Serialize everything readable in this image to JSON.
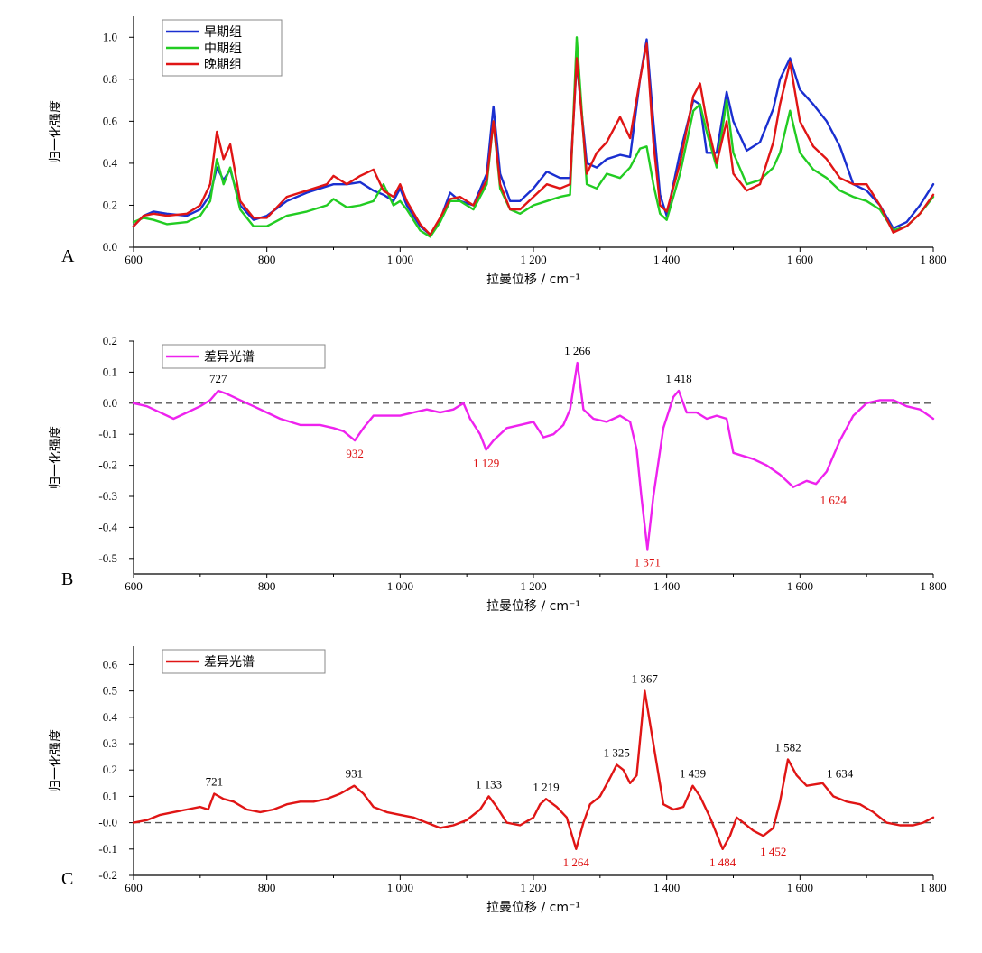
{
  "chart_data": [
    {
      "panel_label": "A",
      "type": "line",
      "xlabel": "拉曼位移 / cm⁻¹",
      "ylabel": "归一化强度",
      "xlim": [
        600,
        1800
      ],
      "ylim": [
        0,
        1.1
      ],
      "xticks": [
        "600",
        "800",
        "1 000",
        "1 200",
        "1 400",
        "1 600",
        "1 800"
      ],
      "yticks": [
        "0.0",
        "0.2",
        "0.4",
        "0.6",
        "0.8",
        "1.0"
      ],
      "yticks_values": [
        0,
        0.2,
        0.4,
        0.6,
        0.8,
        1.0
      ],
      "legend_position": "top-left",
      "series": [
        {
          "name": "早期组",
          "color": "#1a2fd0",
          "x": [
            600,
            615,
            630,
            650,
            680,
            700,
            715,
            725,
            735,
            745,
            760,
            780,
            800,
            830,
            860,
            890,
            900,
            920,
            940,
            960,
            975,
            990,
            1000,
            1010,
            1030,
            1045,
            1060,
            1075,
            1090,
            1110,
            1130,
            1140,
            1150,
            1165,
            1180,
            1200,
            1220,
            1240,
            1255,
            1265,
            1280,
            1295,
            1310,
            1330,
            1345,
            1360,
            1370,
            1380,
            1390,
            1400,
            1420,
            1440,
            1450,
            1460,
            1475,
            1490,
            1500,
            1520,
            1540,
            1560,
            1570,
            1585,
            1600,
            1620,
            1640,
            1660,
            1680,
            1700,
            1720,
            1740,
            1760,
            1780,
            1800
          ],
          "y": [
            0.1,
            0.15,
            0.17,
            0.16,
            0.15,
            0.18,
            0.25,
            0.38,
            0.32,
            0.37,
            0.2,
            0.13,
            0.15,
            0.22,
            0.26,
            0.29,
            0.3,
            0.3,
            0.31,
            0.27,
            0.25,
            0.22,
            0.28,
            0.2,
            0.1,
            0.06,
            0.13,
            0.26,
            0.22,
            0.2,
            0.35,
            0.67,
            0.35,
            0.22,
            0.22,
            0.28,
            0.36,
            0.33,
            0.33,
            0.88,
            0.4,
            0.38,
            0.42,
            0.44,
            0.43,
            0.8,
            0.99,
            0.6,
            0.25,
            0.15,
            0.45,
            0.7,
            0.68,
            0.45,
            0.45,
            0.74,
            0.6,
            0.46,
            0.5,
            0.66,
            0.8,
            0.9,
            0.75,
            0.68,
            0.6,
            0.48,
            0.3,
            0.27,
            0.2,
            0.09,
            0.12,
            0.2,
            0.3
          ]
        },
        {
          "name": "中期组",
          "color": "#22cc22",
          "x": [
            600,
            615,
            630,
            650,
            680,
            700,
            715,
            725,
            735,
            745,
            760,
            780,
            800,
            830,
            860,
            890,
            900,
            920,
            940,
            960,
            975,
            990,
            1000,
            1010,
            1030,
            1045,
            1060,
            1075,
            1090,
            1110,
            1130,
            1140,
            1150,
            1165,
            1180,
            1200,
            1220,
            1240,
            1255,
            1265,
            1280,
            1295,
            1310,
            1330,
            1345,
            1360,
            1370,
            1380,
            1390,
            1400,
            1420,
            1440,
            1450,
            1460,
            1475,
            1490,
            1500,
            1520,
            1540,
            1560,
            1570,
            1585,
            1600,
            1620,
            1640,
            1660,
            1680,
            1700,
            1720,
            1740,
            1760,
            1780,
            1800
          ],
          "y": [
            0.12,
            0.14,
            0.13,
            0.11,
            0.12,
            0.15,
            0.22,
            0.42,
            0.3,
            0.38,
            0.18,
            0.1,
            0.1,
            0.15,
            0.17,
            0.2,
            0.23,
            0.19,
            0.2,
            0.22,
            0.3,
            0.2,
            0.22,
            0.18,
            0.08,
            0.05,
            0.12,
            0.22,
            0.22,
            0.18,
            0.3,
            0.6,
            0.28,
            0.18,
            0.16,
            0.2,
            0.22,
            0.24,
            0.25,
            1.0,
            0.3,
            0.28,
            0.35,
            0.33,
            0.38,
            0.47,
            0.48,
            0.3,
            0.16,
            0.13,
            0.35,
            0.65,
            0.68,
            0.55,
            0.38,
            0.7,
            0.45,
            0.3,
            0.32,
            0.38,
            0.45,
            0.65,
            0.45,
            0.37,
            0.33,
            0.27,
            0.24,
            0.22,
            0.18,
            0.08,
            0.1,
            0.16,
            0.24
          ]
        },
        {
          "name": "晚期组",
          "color": "#e01515",
          "x": [
            600,
            615,
            630,
            650,
            680,
            700,
            715,
            725,
            735,
            745,
            760,
            780,
            800,
            830,
            860,
            890,
            900,
            920,
            940,
            960,
            975,
            990,
            1000,
            1010,
            1030,
            1045,
            1060,
            1075,
            1090,
            1110,
            1130,
            1140,
            1150,
            1165,
            1180,
            1200,
            1220,
            1240,
            1255,
            1265,
            1280,
            1295,
            1310,
            1330,
            1345,
            1360,
            1370,
            1380,
            1390,
            1400,
            1420,
            1440,
            1450,
            1460,
            1475,
            1490,
            1500,
            1520,
            1540,
            1560,
            1570,
            1585,
            1600,
            1620,
            1640,
            1660,
            1680,
            1700,
            1720,
            1740,
            1760,
            1780,
            1800
          ],
          "y": [
            0.1,
            0.15,
            0.16,
            0.15,
            0.16,
            0.2,
            0.3,
            0.55,
            0.42,
            0.49,
            0.22,
            0.14,
            0.14,
            0.24,
            0.27,
            0.3,
            0.34,
            0.3,
            0.34,
            0.37,
            0.27,
            0.24,
            0.3,
            0.22,
            0.11,
            0.06,
            0.14,
            0.23,
            0.24,
            0.2,
            0.32,
            0.6,
            0.3,
            0.18,
            0.18,
            0.24,
            0.3,
            0.28,
            0.3,
            0.9,
            0.35,
            0.45,
            0.5,
            0.62,
            0.52,
            0.8,
            0.97,
            0.5,
            0.2,
            0.17,
            0.4,
            0.72,
            0.78,
            0.6,
            0.4,
            0.6,
            0.35,
            0.27,
            0.3,
            0.5,
            0.68,
            0.88,
            0.6,
            0.48,
            0.42,
            0.33,
            0.3,
            0.3,
            0.2,
            0.07,
            0.1,
            0.16,
            0.25
          ]
        }
      ]
    },
    {
      "panel_label": "B",
      "type": "line",
      "xlabel": "拉曼位移 / cm⁻¹",
      "ylabel": "归一化强度",
      "xlim": [
        600,
        1800
      ],
      "ylim": [
        -0.55,
        0.2
      ],
      "xticks": [
        "600",
        "800",
        "1 000",
        "1 200",
        "1 400",
        "1 600",
        "1 800"
      ],
      "yticks": [
        "0.2",
        "0.1",
        "0.0",
        "-0.1",
        "-0.2",
        "-0.3",
        "-0.4",
        "-0.5"
      ],
      "yticks_values": [
        0.2,
        0.1,
        0,
        -0.1,
        -0.2,
        -0.3,
        -0.4,
        -0.5
      ],
      "zero_line": true,
      "legend_position": "top-left",
      "series": [
        {
          "name": "差异光谱",
          "color": "#ee22ee",
          "x": [
            600,
            620,
            640,
            660,
            680,
            700,
            715,
            727,
            740,
            760,
            780,
            800,
            820,
            850,
            880,
            900,
            915,
            932,
            945,
            960,
            980,
            1000,
            1020,
            1040,
            1060,
            1080,
            1095,
            1105,
            1120,
            1129,
            1140,
            1160,
            1180,
            1200,
            1215,
            1230,
            1245,
            1255,
            1266,
            1275,
            1290,
            1310,
            1330,
            1345,
            1355,
            1362,
            1371,
            1380,
            1395,
            1410,
            1418,
            1430,
            1445,
            1460,
            1475,
            1490,
            1500,
            1515,
            1530,
            1550,
            1570,
            1590,
            1610,
            1624,
            1640,
            1660,
            1680,
            1700,
            1720,
            1740,
            1760,
            1780,
            1800
          ],
          "y": [
            0.0,
            -0.01,
            -0.03,
            -0.05,
            -0.03,
            -0.01,
            0.01,
            0.04,
            0.03,
            0.01,
            -0.01,
            -0.03,
            -0.05,
            -0.07,
            -0.07,
            -0.08,
            -0.09,
            -0.12,
            -0.08,
            -0.04,
            -0.04,
            -0.04,
            -0.03,
            -0.02,
            -0.03,
            -0.02,
            -0.0,
            -0.05,
            -0.1,
            -0.15,
            -0.12,
            -0.08,
            -0.07,
            -0.06,
            -0.11,
            -0.1,
            -0.07,
            -0.02,
            0.13,
            -0.02,
            -0.05,
            -0.06,
            -0.04,
            -0.06,
            -0.15,
            -0.3,
            -0.47,
            -0.3,
            -0.08,
            0.02,
            0.04,
            -0.03,
            -0.03,
            -0.05,
            -0.04,
            -0.05,
            -0.16,
            -0.17,
            -0.18,
            -0.2,
            -0.23,
            -0.27,
            -0.25,
            -0.26,
            -0.22,
            -0.12,
            -0.04,
            0.0,
            0.01,
            0.01,
            -0.01,
            -0.02,
            -0.05
          ]
        }
      ],
      "annotations": [
        {
          "text": "727",
          "x": 727,
          "y": 0.04,
          "color": "#000000",
          "pos": "above"
        },
        {
          "text": "1 266",
          "x": 1266,
          "y": 0.13,
          "color": "#000000",
          "pos": "above"
        },
        {
          "text": "1 418",
          "x": 1418,
          "y": 0.04,
          "color": "#000000",
          "pos": "above"
        },
        {
          "text": "932",
          "x": 932,
          "y": -0.12,
          "color": "#dd1111",
          "pos": "below"
        },
        {
          "text": "1 129",
          "x": 1129,
          "y": -0.15,
          "color": "#dd1111",
          "pos": "below"
        },
        {
          "text": "1 371",
          "x": 1371,
          "y": -0.47,
          "color": "#dd1111",
          "pos": "below"
        },
        {
          "text": "1 624",
          "x": 1650,
          "y": -0.27,
          "color": "#dd1111",
          "pos": "below"
        }
      ]
    },
    {
      "panel_label": "C",
      "type": "line",
      "xlabel": "拉曼位移 / cm⁻¹",
      "ylabel": "归一化强度",
      "xlim": [
        600,
        1800
      ],
      "ylim": [
        -0.2,
        0.67
      ],
      "xticks": [
        "600",
        "800",
        "1 000",
        "1 200",
        "1 400",
        "1 600",
        "1 800"
      ],
      "yticks": [
        "0.6",
        "0.5",
        "0.4",
        "0.3",
        "0.2",
        "0.1",
        "-0.0",
        "-0.1",
        "-0.2"
      ],
      "yticks_values": [
        0.6,
        0.5,
        0.4,
        0.3,
        0.2,
        0.1,
        0,
        -0.1,
        -0.2
      ],
      "zero_line": true,
      "legend_position": "top-left",
      "series": [
        {
          "name": "差异光谱",
          "color": "#e01515",
          "x": [
            600,
            620,
            640,
            660,
            680,
            700,
            712,
            721,
            735,
            750,
            770,
            790,
            810,
            830,
            850,
            870,
            890,
            910,
            931,
            945,
            960,
            980,
            1000,
            1020,
            1040,
            1060,
            1080,
            1100,
            1120,
            1133,
            1145,
            1160,
            1180,
            1200,
            1210,
            1219,
            1235,
            1250,
            1264,
            1275,
            1285,
            1300,
            1315,
            1325,
            1335,
            1345,
            1355,
            1367,
            1380,
            1395,
            1410,
            1425,
            1439,
            1450,
            1465,
            1484,
            1495,
            1505,
            1515,
            1530,
            1545,
            1560,
            1570,
            1582,
            1595,
            1610,
            1634,
            1650,
            1670,
            1690,
            1710,
            1730,
            1750,
            1770,
            1785,
            1800
          ],
          "y": [
            0.0,
            0.01,
            0.03,
            0.04,
            0.05,
            0.06,
            0.05,
            0.11,
            0.09,
            0.08,
            0.05,
            0.04,
            0.05,
            0.07,
            0.08,
            0.08,
            0.09,
            0.11,
            0.14,
            0.11,
            0.06,
            0.04,
            0.03,
            0.02,
            0.0,
            -0.02,
            -0.01,
            0.01,
            0.05,
            0.1,
            0.06,
            0.0,
            -0.01,
            0.02,
            0.07,
            0.09,
            0.06,
            0.02,
            -0.1,
            0.0,
            0.07,
            0.1,
            0.17,
            0.22,
            0.2,
            0.15,
            0.18,
            0.5,
            0.3,
            0.07,
            0.05,
            0.06,
            0.14,
            0.1,
            0.02,
            -0.1,
            -0.05,
            0.02,
            0.0,
            -0.03,
            -0.05,
            -0.02,
            0.08,
            0.24,
            0.18,
            0.14,
            0.15,
            0.1,
            0.08,
            0.07,
            0.04,
            0.0,
            -0.01,
            -0.01,
            0.0,
            0.02
          ]
        }
      ],
      "annotations": [
        {
          "text": "721",
          "x": 721,
          "y": 0.11,
          "color": "#000000",
          "pos": "above"
        },
        {
          "text": "931",
          "x": 931,
          "y": 0.14,
          "color": "#000000",
          "pos": "above"
        },
        {
          "text": "1 133",
          "x": 1133,
          "y": 0.1,
          "color": "#000000",
          "pos": "above"
        },
        {
          "text": "1 219",
          "x": 1219,
          "y": 0.09,
          "color": "#000000",
          "pos": "above"
        },
        {
          "text": "1 325",
          "x": 1325,
          "y": 0.22,
          "color": "#000000",
          "pos": "above"
        },
        {
          "text": "1 367",
          "x": 1367,
          "y": 0.5,
          "color": "#000000",
          "pos": "above"
        },
        {
          "text": "1 439",
          "x": 1439,
          "y": 0.14,
          "color": "#000000",
          "pos": "above"
        },
        {
          "text": "1 582",
          "x": 1582,
          "y": 0.24,
          "color": "#000000",
          "pos": "above"
        },
        {
          "text": "1 634",
          "x": 1660,
          "y": 0.14,
          "color": "#000000",
          "pos": "above"
        },
        {
          "text": "1 264",
          "x": 1264,
          "y": -0.1,
          "color": "#dd1111",
          "pos": "below"
        },
        {
          "text": "1 484",
          "x": 1484,
          "y": -0.1,
          "color": "#dd1111",
          "pos": "below"
        },
        {
          "text": "1 452",
          "x": 1560,
          "y": -0.06,
          "color": "#dd1111",
          "pos": "below"
        }
      ]
    }
  ]
}
